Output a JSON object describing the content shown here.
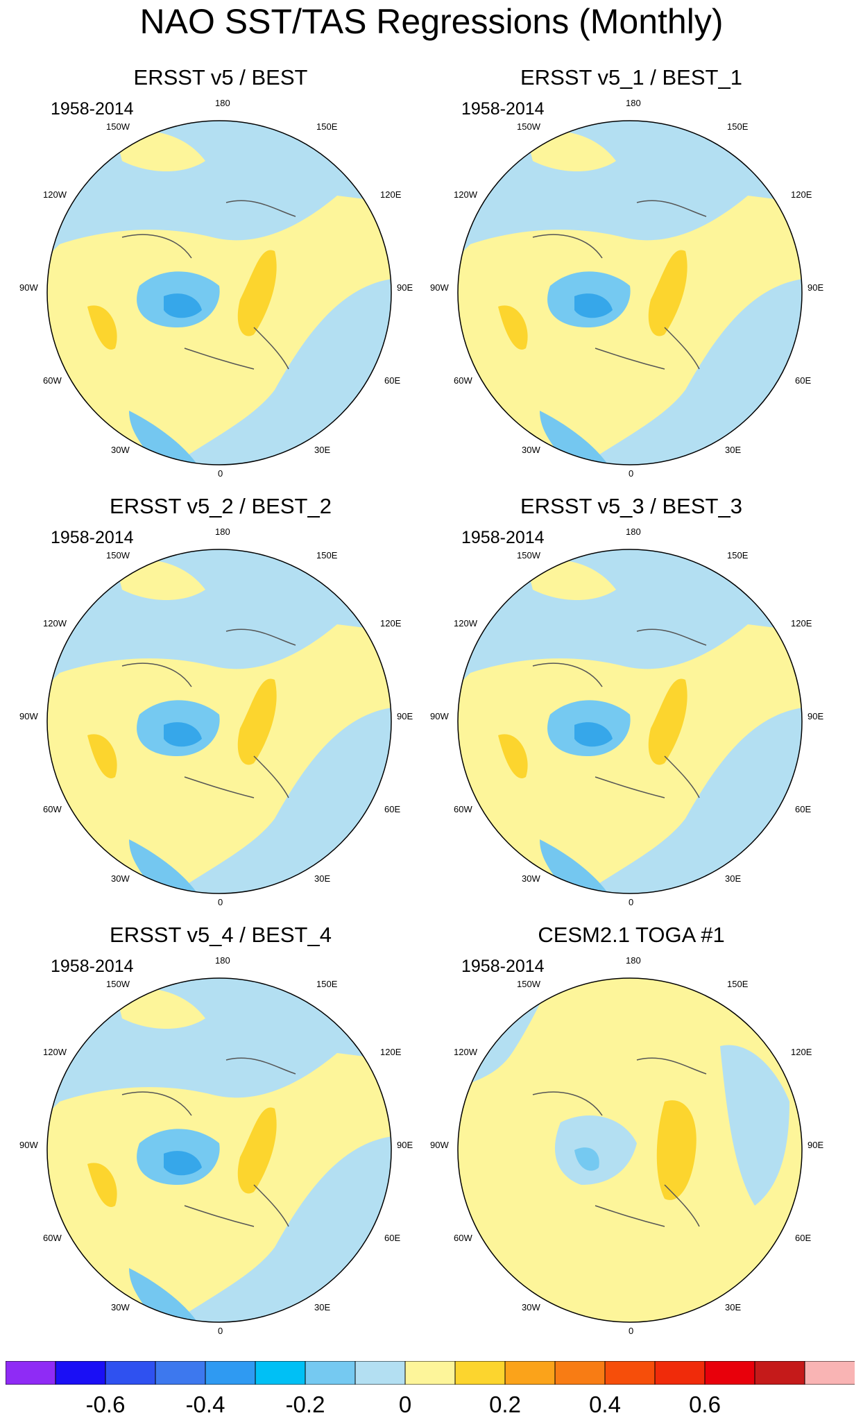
{
  "figure": {
    "title": "NAO SST/TAS Regressions (Monthly)"
  },
  "longitude_labels": {
    "top": "180",
    "upper_left": "150W",
    "upper_right": "150E",
    "left_high": "120W",
    "right_high": "120E",
    "left_mid": "90W",
    "right_mid": "90E",
    "left_low": "60W",
    "right_low": "60E",
    "lower_left": "30W",
    "lower_right": "30E",
    "bottom": "0"
  },
  "colors": {
    "ocean_light_blue": "#b3dff2",
    "ocean_mid_blue": "#74c7f0",
    "neg_blue": "#36a7ea",
    "neg_cyan": "#10b6f2",
    "pos_yellow": "#fdf59a",
    "pos_gold": "#fcd52e",
    "pos_orange": "#fba31a",
    "coast": "#555555"
  },
  "panels": [
    {
      "title": "ERSST v5 / BEST",
      "period": "1958-2014"
    },
    {
      "title": "ERSST v5_1 / BEST_1",
      "period": "1958-2014"
    },
    {
      "title": "ERSST v5_2 / BEST_2",
      "period": "1958-2014"
    },
    {
      "title": "ERSST v5_3 / BEST_3",
      "period": "1958-2014"
    },
    {
      "title": "ERSST v5_4 / BEST_4",
      "period": "1958-2014"
    },
    {
      "title": "CESM2.1 TOGA #1",
      "period": "1958-2014"
    }
  ],
  "colorbar": {
    "colors": [
      "#8f2bf5",
      "#1a0ff5",
      "#2f51f0",
      "#3d78ee",
      "#2f9af2",
      "#00c0f5",
      "#75c9f1",
      "#b3dff2",
      "#fdf59a",
      "#fcd52e",
      "#fba31a",
      "#f87c14",
      "#f64e0a",
      "#f02b0a",
      "#e8000b",
      "#c51a1a",
      "#f9b4b4"
    ],
    "tick_labels": [
      "-0.6",
      "-0.4",
      "-0.2",
      "0",
      "0.2",
      "0.4",
      "0.6"
    ]
  }
}
